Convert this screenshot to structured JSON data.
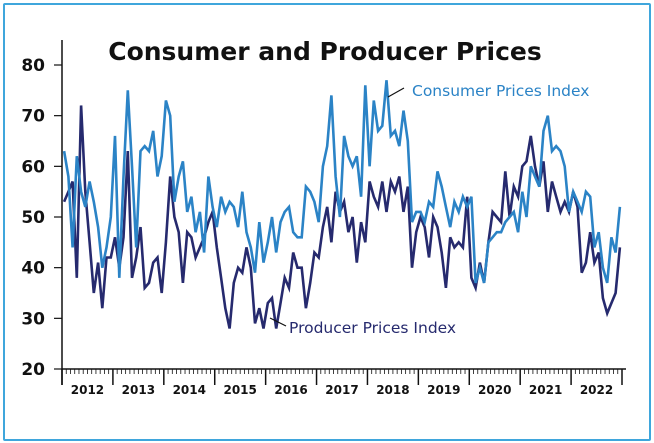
{
  "chart_data": {
    "type": "line",
    "title": "Consumer and Producer Prices",
    "xlabel": "",
    "ylabel": "",
    "ylim": [
      20,
      80
    ],
    "yticks": [
      "20",
      "30",
      "40",
      "50",
      "60",
      "70",
      "80"
    ],
    "xticks": [
      "2012",
      "2013",
      "2014",
      "2015",
      "2016",
      "2017",
      "2018",
      "2019",
      "2020",
      "2021",
      "2022"
    ],
    "x_start": "2012-01",
    "x_frequency": "monthly",
    "grid": false,
    "series": [
      {
        "name": "Consumer Prices Index",
        "color": "#2b83c6",
        "values": [
          63,
          58,
          44,
          62,
          55,
          52,
          57,
          53,
          48,
          40,
          44,
          50,
          66,
          38,
          58,
          75,
          60,
          44,
          63,
          64,
          63,
          67,
          58,
          62,
          73,
          70,
          53,
          58,
          61,
          51,
          54,
          47,
          51,
          43,
          58,
          52,
          48,
          54,
          51,
          53,
          52,
          48,
          55,
          47,
          44,
          39,
          49,
          41,
          45,
          50,
          43,
          49,
          51,
          52,
          47,
          46,
          46,
          56,
          55,
          53,
          49,
          60,
          64,
          74,
          58,
          50,
          66,
          62,
          60,
          62,
          54,
          76,
          60,
          73,
          67,
          68,
          77,
          66,
          67,
          64,
          71,
          65,
          49,
          51,
          51,
          49,
          53,
          52,
          59,
          56,
          52,
          48,
          53,
          51,
          54,
          52,
          54,
          37,
          40,
          37,
          45,
          46,
          47,
          47,
          49,
          50,
          51,
          47,
          55,
          50,
          60,
          58,
          56,
          67,
          70,
          63,
          64,
          63,
          60,
          51,
          55,
          53,
          51,
          55,
          54,
          44,
          47,
          40,
          37,
          46,
          43,
          52
        ]
      },
      {
        "name": "Producer Prices Index",
        "color": "#262a6e",
        "values": [
          53,
          55,
          57,
          38,
          72,
          55,
          45,
          35,
          41,
          32,
          42,
          42,
          46,
          40,
          46,
          63,
          38,
          42,
          48,
          36,
          37,
          41,
          42,
          35,
          45,
          58,
          50,
          47,
          37,
          47,
          46,
          42,
          44,
          46,
          49,
          51,
          44,
          38,
          32,
          28,
          37,
          40,
          39,
          44,
          40,
          29,
          32,
          28,
          33,
          34,
          28,
          33,
          38,
          36,
          43,
          40,
          40,
          32,
          37,
          43,
          42,
          48,
          52,
          45,
          55,
          51,
          53,
          47,
          50,
          41,
          49,
          45,
          57,
          54,
          52,
          57,
          51,
          57,
          55,
          58,
          51,
          56,
          40,
          47,
          50,
          48,
          42,
          50,
          48,
          43,
          36,
          46,
          44,
          45,
          44,
          54,
          38,
          36,
          41,
          37,
          45,
          51,
          50,
          49,
          59,
          50,
          56,
          54,
          60,
          61,
          66,
          60,
          56,
          61,
          51,
          57,
          54,
          51,
          53,
          51,
          55,
          52,
          39,
          41,
          47,
          41,
          43,
          34,
          31,
          33,
          35,
          44
        ]
      }
    ],
    "annotations": [
      "Consumer Prices Index",
      "Producer Prices Index"
    ]
  }
}
